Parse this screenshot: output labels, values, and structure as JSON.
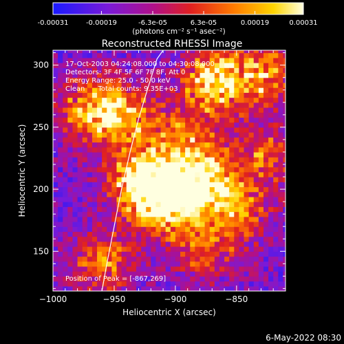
{
  "chart_data": {
    "type": "heatmap",
    "title": "Reconstructed RHESSI Image",
    "xlabel": "Heliocentric X (arcsec)",
    "ylabel": "Heliocentric Y (arcsec)",
    "xlim": [
      -1000,
      -810
    ],
    "ylim": [
      118,
      312
    ],
    "xticks": [
      -1000,
      -950,
      -900,
      -850
    ],
    "xtick_labels": [
      "−1000",
      "−950",
      "−900",
      "−850"
    ],
    "yticks": [
      150,
      200,
      250,
      300
    ],
    "ytick_labels": [
      "150",
      "200",
      "250",
      "300"
    ],
    "colorbar": {
      "ticks": [
        -0.00031,
        -0.00019,
        -6.3e-05,
        6.3e-05,
        0.00019,
        0.00031
      ],
      "tick_labels": [
        "-0.00031",
        "-0.00019",
        "-6.3e-05",
        "6.3e-05",
        "0.00019",
        "0.00031"
      ],
      "unit_label": "(photons cm⁻² s⁻¹ asec⁻²)",
      "colors": [
        "#1a1aff",
        "#7a1ad8",
        "#b0108a",
        "#e02020",
        "#ff7a00",
        "#ffd400",
        "#ffffe0"
      ]
    },
    "annotations": [
      "17-Oct-2003 04:24:08.000 to 04:30:08.000",
      "Detectors: 3F 4F 5F 6F 7F 8F, Att 0",
      "Energy Range: 25.0 - 50.0 keV",
      "Clean      Total counts: 9.35E+03",
      "Position of Peak = [-867,269]"
    ],
    "peak": [
      -867,
      269
    ],
    "limb_curve_x": [
      -960,
      -956,
      -950,
      -944,
      -937,
      -930,
      -922,
      -915,
      -910
    ],
    "limb_curve_y": [
      118,
      140,
      170,
      200,
      230,
      257,
      283,
      305,
      312
    ],
    "bright_regions": [
      {
        "x": -910,
        "y": 190,
        "intensity": 1.0
      },
      {
        "x": -880,
        "y": 205,
        "intensity": 0.9
      },
      {
        "x": -930,
        "y": 205,
        "intensity": 0.85
      },
      {
        "x": -870,
        "y": 285,
        "intensity": 0.9
      },
      {
        "x": -970,
        "y": 262,
        "intensity": 0.75
      },
      {
        "x": -940,
        "y": 255,
        "intensity": 0.6
      },
      {
        "x": -830,
        "y": 290,
        "intensity": 0.6
      },
      {
        "x": -850,
        "y": 180,
        "intensity": 0.55
      },
      {
        "x": -960,
        "y": 140,
        "intensity": 0.55
      },
      {
        "x": -880,
        "y": 150,
        "intensity": 0.45
      },
      {
        "x": -895,
        "y": 240,
        "intensity": 0.5
      },
      {
        "x": -830,
        "y": 225,
        "intensity": 0.45
      }
    ]
  },
  "footer": {
    "date": "6-May-2022 08:30"
  }
}
